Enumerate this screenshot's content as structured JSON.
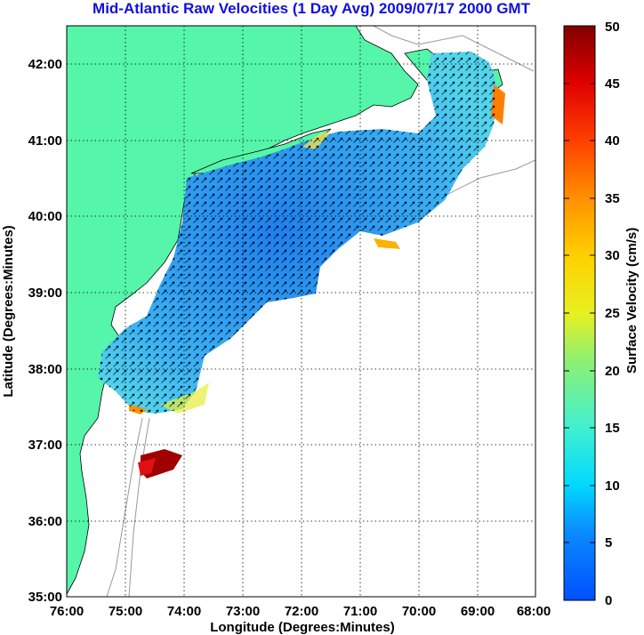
{
  "title": "Mid-Atlantic Raw Velocities (1 Day Avg) 2009/07/17 2000 GMT",
  "x_axis": {
    "label": "Longitude (Degrees:Minutes)",
    "ticks": [
      "76:00",
      "75:00",
      "74:00",
      "73:00",
      "72:00",
      "71:00",
      "70:00",
      "69:00",
      "68:00"
    ]
  },
  "y_axis": {
    "label": "Latitude (Degrees:Minutes)",
    "ticks": [
      "35:00",
      "36:00",
      "37:00",
      "38:00",
      "39:00",
      "40:00",
      "41:00",
      "42:00"
    ]
  },
  "colorbar": {
    "label": "Surface Velocity (cm/s)",
    "ticks": [
      "0",
      "5",
      "10",
      "15",
      "20",
      "25",
      "30",
      "35",
      "40",
      "45",
      "50"
    ],
    "range": [
      0,
      50
    ]
  },
  "chart_data": {
    "type": "heatmap",
    "title": "Mid-Atlantic Raw Velocities (1 Day Avg) 2009/07/17 2000 GMT",
    "xlabel": "Longitude (Degrees:Minutes)",
    "ylabel": "Latitude (Degrees:Minutes)",
    "xlim": [
      -76,
      -68
    ],
    "ylim": [
      35,
      42.5
    ],
    "grid": true,
    "colorbar_label": "Surface Velocity (cm/s)",
    "clim": [
      0,
      50
    ]
  },
  "colors": {
    "land": "#55f5aa",
    "title": "#1010e0",
    "field_low": "#2b8ef0",
    "field_mid": "#39c6f2",
    "field_high": "#ffd700",
    "field_max": "#a00000"
  }
}
